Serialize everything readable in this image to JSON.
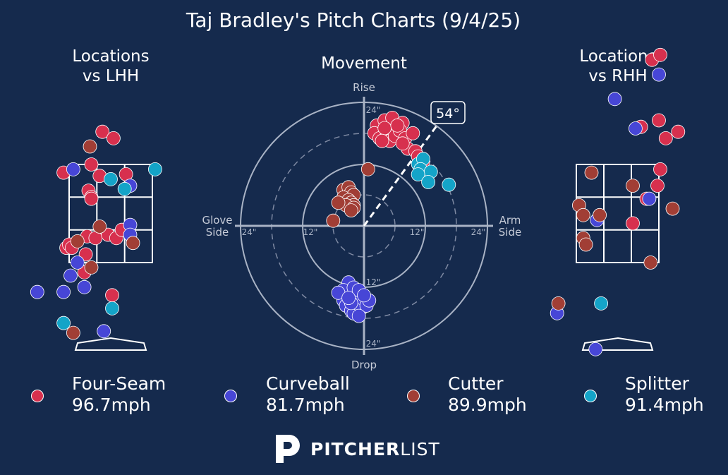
{
  "title": "Taj Bradley's Pitch Charts (9/4/25)",
  "colors": {
    "background": "#152a4d",
    "four_seam": "#d7304e",
    "curveball": "#4746d6",
    "cutter": "#a13e35",
    "splitter": "#14a4c8"
  },
  "panels": {
    "lhh_title": [
      "Locations",
      "vs LHH"
    ],
    "movement_title": "Movement",
    "rhh_title": [
      "Locations",
      "vs RHH"
    ]
  },
  "movement_labels": {
    "top": "Rise",
    "bottom": "Drop",
    "left": [
      "Glove",
      "Side"
    ],
    "right": [
      "Arm",
      "Side"
    ],
    "ring_labels": [
      "24\"",
      "12\"",
      "12\"",
      "24\"",
      "24\"",
      "12\"",
      "12\"",
      "24\""
    ],
    "arm_angle": "54°"
  },
  "legend": [
    {
      "pitch": "Four-Seam",
      "velo": "96.7mph",
      "color": "#d7304e"
    },
    {
      "pitch": "Curveball",
      "velo": "81.7mph",
      "color": "#4746d6"
    },
    {
      "pitch": "Cutter",
      "velo": "89.9mph",
      "color": "#a13e35"
    },
    {
      "pitch": "Splitter",
      "velo": "91.4mph",
      "color": "#14a4c8"
    }
  ],
  "brand": {
    "bold": "PITCHER",
    "light": "LIST"
  },
  "chart_data": [
    {
      "type": "scatter",
      "title": "Locations vs LHH",
      "x_units": "zone widths (0-3 strike zone)",
      "y_units": "zone heights (0 bottom - 3 top)",
      "series": [
        {
          "name": "Four-Seam",
          "points": [
            [
              1.2,
              4.0
            ],
            [
              1.6,
              3.8
            ],
            [
              -0.2,
              2.75
            ],
            [
              0.8,
              3.0
            ],
            [
              1.1,
              2.65
            ],
            [
              2.05,
              2.7
            ],
            [
              0.7,
              2.2
            ],
            [
              0.8,
              2.0
            ],
            [
              0.8,
              1.95
            ],
            [
              0.65,
              0.8
            ],
            [
              0.95,
              0.75
            ],
            [
              1.4,
              0.85
            ],
            [
              1.7,
              0.75
            ],
            [
              1.9,
              1.0
            ],
            [
              -0.1,
              0.45
            ],
            [
              0.0,
              0.55
            ],
            [
              0.1,
              0.45
            ],
            [
              0.6,
              0.25
            ],
            [
              0.55,
              -0.3
            ],
            [
              1.55,
              -1.0
            ]
          ]
        },
        {
          "name": "Curveball",
          "points": [
            [
              0.15,
              2.85
            ],
            [
              2.2,
              2.35
            ],
            [
              2.2,
              1.15
            ],
            [
              2.2,
              0.85
            ],
            [
              -1.15,
              -0.9
            ],
            [
              0.3,
              0.0
            ],
            [
              0.05,
              -0.4
            ],
            [
              0.55,
              -0.75
            ],
            [
              1.25,
              -2.1
            ],
            [
              -0.2,
              -0.9
            ]
          ]
        },
        {
          "name": "Cutter",
          "points": [
            [
              0.75,
              3.55
            ],
            [
              0.3,
              0.65
            ],
            [
              0.8,
              -0.15
            ],
            [
              2.3,
              0.6
            ],
            [
              1.1,
              1.1
            ],
            [
              0.15,
              -2.15
            ]
          ]
        },
        {
          "name": "Splitter",
          "points": [
            [
              1.5,
              2.55
            ],
            [
              2.0,
              2.25
            ],
            [
              3.1,
              2.85
            ],
            [
              1.55,
              -1.4
            ],
            [
              -0.2,
              -1.85
            ]
          ]
        }
      ]
    },
    {
      "type": "scatter",
      "title": "Movement",
      "x_units": "inches horizontal break (+ arm side)",
      "y_units": "inches induced vertical break (+ rise)",
      "xlim": [
        -24,
        24
      ],
      "ylim": [
        -24,
        24
      ],
      "arm_angle_deg": 54,
      "series": [
        {
          "name": "Four-Seam",
          "points": [
            [
              2.5,
              19.5
            ],
            [
              4.0,
              20.5
            ],
            [
              5.5,
              21.0
            ],
            [
              7.5,
              20.0
            ],
            [
              2.0,
              18.0
            ],
            [
              3.0,
              17.0
            ],
            [
              4.5,
              18.0
            ],
            [
              5.0,
              16.5
            ],
            [
              6.0,
              17.5
            ],
            [
              7.0,
              18.5
            ],
            [
              8.0,
              17.0
            ],
            [
              9.5,
              18.0
            ],
            [
              8.5,
              15.0
            ],
            [
              10.0,
              14.5
            ],
            [
              10.5,
              13.5
            ],
            [
              11.5,
              12.5
            ],
            [
              7.5,
              16.0
            ],
            [
              4.0,
              19.0
            ],
            [
              6.5,
              19.5
            ],
            [
              3.5,
              16.5
            ]
          ]
        },
        {
          "name": "Curveball",
          "points": [
            [
              -3.0,
              -11.0
            ],
            [
              -4.0,
              -12.5
            ],
            [
              -2.0,
              -12.0
            ],
            [
              -4.0,
              -14.5
            ],
            [
              -3.5,
              -15.5
            ],
            [
              -2.5,
              -16.5
            ],
            [
              -2.0,
              -17.0
            ],
            [
              -1.5,
              -15.0
            ],
            [
              -0.5,
              -16.0
            ],
            [
              -0.5,
              -14.0
            ],
            [
              0.5,
              -15.5
            ],
            [
              -1.0,
              -17.5
            ],
            [
              -2.5,
              -15.0
            ],
            [
              -1.0,
              -12.5
            ],
            [
              -5.0,
              -13.0
            ],
            [
              1.0,
              -14.5
            ],
            [
              0.0,
              -13.5
            ],
            [
              -3.0,
              -14.0
            ]
          ]
        },
        {
          "name": "Cutter",
          "points": [
            [
              -4.0,
              7.0
            ],
            [
              -3.0,
              7.5
            ],
            [
              -2.5,
              6.5
            ],
            [
              -2.0,
              6.0
            ],
            [
              -4.0,
              5.5
            ],
            [
              -3.0,
              5.0
            ],
            [
              -2.5,
              4.5
            ],
            [
              -2.0,
              4.0
            ],
            [
              -3.5,
              4.0
            ],
            [
              -2.0,
              3.5
            ],
            [
              -5.0,
              4.5
            ],
            [
              -2.5,
              3.0
            ],
            [
              -6.0,
              1.0
            ],
            [
              0.8,
              11.0
            ]
          ]
        },
        {
          "name": "Splitter",
          "points": [
            [
              10.5,
              12.0
            ],
            [
              11.5,
              13.0
            ],
            [
              11.0,
              11.0
            ],
            [
              13.0,
              10.5
            ],
            [
              10.5,
              10.0
            ],
            [
              12.5,
              8.5
            ],
            [
              16.5,
              8.0
            ]
          ]
        }
      ]
    },
    {
      "type": "scatter",
      "title": "Locations vs RHH",
      "x_units": "zone widths (0-3 strike zone)",
      "y_units": "zone heights (0 bottom - 3 top)",
      "series": [
        {
          "name": "Four-Seam",
          "points": [
            [
              2.75,
              6.2
            ],
            [
              3.05,
              6.35
            ],
            [
              3.0,
              4.35
            ],
            [
              3.25,
              3.8
            ],
            [
              2.35,
              4.15
            ],
            [
              3.7,
              4.0
            ],
            [
              3.05,
              2.85
            ],
            [
              2.95,
              2.35
            ],
            [
              2.55,
              1.95
            ],
            [
              2.05,
              1.2
            ]
          ]
        },
        {
          "name": "Curveball",
          "points": [
            [
              3.0,
              5.75
            ],
            [
              1.4,
              5.0
            ],
            [
              2.15,
              4.1
            ],
            [
              2.65,
              1.95
            ],
            [
              0.75,
              1.3
            ],
            [
              -0.7,
              -1.55
            ],
            [
              0.7,
              -2.65
            ]
          ]
        },
        {
          "name": "Cutter",
          "points": [
            [
              0.55,
              2.75
            ],
            [
              2.05,
              2.35
            ],
            [
              0.1,
              1.75
            ],
            [
              0.25,
              1.45
            ],
            [
              0.85,
              1.45
            ],
            [
              0.25,
              0.75
            ],
            [
              0.35,
              0.55
            ],
            [
              3.5,
              1.65
            ],
            [
              2.7,
              0.0
            ],
            [
              -0.65,
              -1.25
            ]
          ]
        },
        {
          "name": "Splitter",
          "points": [
            [
              0.9,
              -1.25
            ]
          ]
        }
      ]
    }
  ]
}
